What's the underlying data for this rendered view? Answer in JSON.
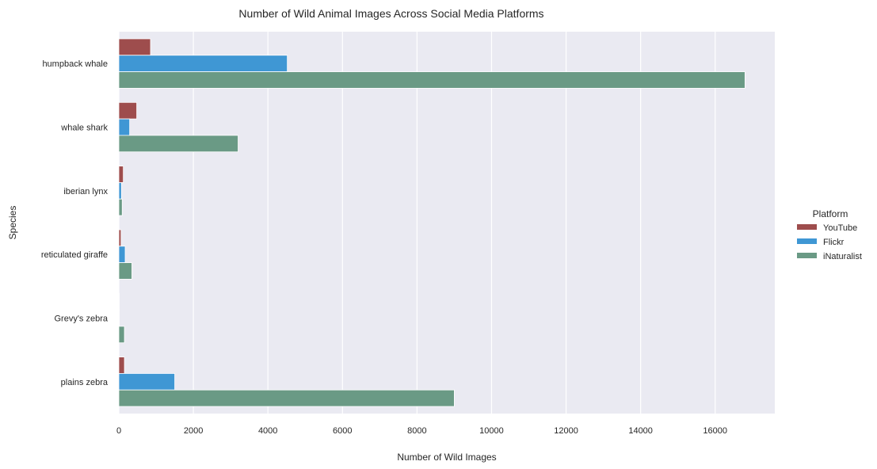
{
  "chart_data": {
    "type": "bar",
    "orientation": "horizontal",
    "title": "Number of Wild Animal Images Across Social Media Platforms",
    "xlabel": "Number of Wild Images",
    "ylabel": "Species",
    "xlim": [
      0,
      17600
    ],
    "xticks": [
      0,
      2000,
      4000,
      6000,
      8000,
      10000,
      12000,
      14000,
      16000
    ],
    "grid": true,
    "legend_title": "Platform",
    "legend_position": "right",
    "categories": [
      "humpback whale",
      "whale shark",
      "iberian lynx",
      "reticulated giraffe",
      "Grevy's zebra",
      "plains zebra"
    ],
    "series": [
      {
        "name": "YouTube",
        "color": "#9e4d4d",
        "values": [
          850,
          480,
          120,
          60,
          10,
          150
        ]
      },
      {
        "name": "Flickr",
        "color": "#3f97d4",
        "values": [
          4520,
          290,
          70,
          170,
          10,
          1500
        ]
      },
      {
        "name": "iNaturalist",
        "color": "#6a9a85",
        "values": [
          16800,
          3200,
          90,
          350,
          150,
          9000
        ]
      }
    ]
  }
}
